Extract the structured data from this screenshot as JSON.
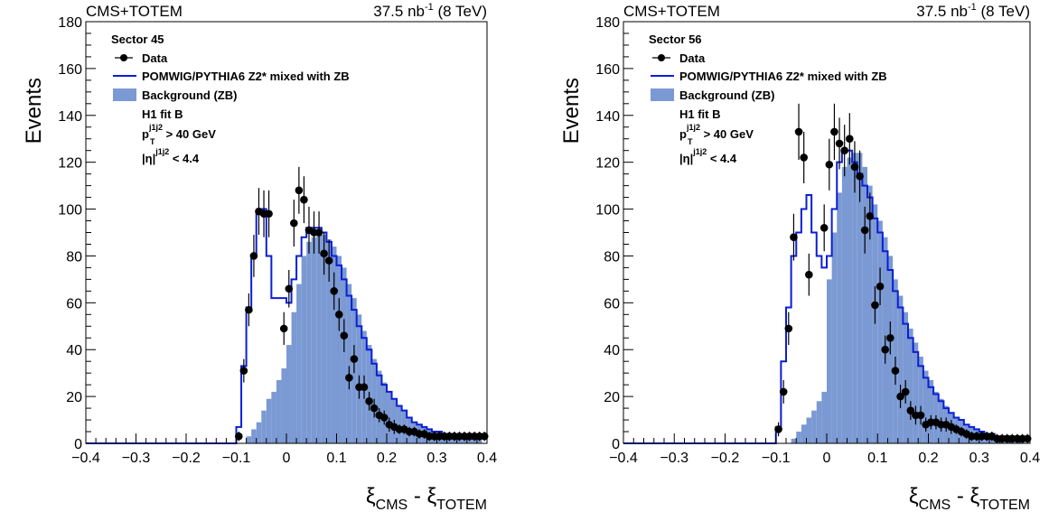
{
  "chart_data": [
    {
      "type": "bar",
      "header_left": "CMS+TOTEM",
      "header_right": {
        "lumi": "37.5 nb",
        "exp": "-1",
        "energy": " (8 TeV)"
      },
      "ylabel": "Events",
      "xlabel": {
        "a": "ξ",
        "a_sub": "CMS",
        "sep": " - ",
        "b": "ξ",
        "b_sub": "TOTEM"
      },
      "xlim": [
        -0.4,
        0.4
      ],
      "ylim": [
        0,
        180
      ],
      "xticks": [
        "−0.4",
        "−0.3",
        "−0.2",
        "−0.1",
        "0",
        "0.1",
        "0.2",
        "0.3",
        "0.4"
      ],
      "yticks": [
        "0",
        "20",
        "40",
        "60",
        "80",
        "100",
        "120",
        "140",
        "160",
        "180"
      ],
      "legend": {
        "sector": "Sector 45",
        "data": "Data",
        "mc": "POMWIG/PYTHIA6 Z2* mixed with ZB",
        "bkg": "Background (ZB)",
        "fit": "H1 fit B",
        "cut_pt": {
          "p": "p",
          "sup": "j1j2",
          "sub": "T",
          "rest": " > 40 GeV"
        },
        "cut_eta": {
          "pre": "|η|",
          "sup": "j1j2",
          "rest": " < 4.4"
        }
      },
      "bin_edges": [
        -0.4,
        -0.1,
        -0.09,
        -0.08,
        -0.07,
        -0.06,
        -0.05,
        -0.04,
        -0.03,
        -0.02,
        -0.01,
        0.0,
        0.01,
        0.02,
        0.03,
        0.04,
        0.05,
        0.06,
        0.07,
        0.08,
        0.09,
        0.1,
        0.11,
        0.12,
        0.13,
        0.14,
        0.15,
        0.16,
        0.17,
        0.18,
        0.19,
        0.2,
        0.21,
        0.22,
        0.23,
        0.24,
        0.25,
        0.26,
        0.27,
        0.28,
        0.29,
        0.3,
        0.31,
        0.32,
        0.33,
        0.34,
        0.35,
        0.36,
        0.37,
        0.38,
        0.39,
        0.4
      ],
      "series": [
        {
          "name": "Background (ZB)",
          "values": [
            0,
            0,
            0,
            3,
            6,
            9,
            14,
            19,
            22,
            27,
            32,
            42,
            56,
            68,
            80,
            86,
            88,
            89,
            89,
            87,
            84,
            80,
            75,
            68,
            62,
            55,
            48,
            42,
            36,
            31,
            26,
            22,
            19,
            16,
            14,
            11,
            9,
            8,
            7,
            6,
            5,
            5,
            4,
            4,
            3,
            3,
            3,
            2,
            2,
            2
          ]
        },
        {
          "name": "POMWIG/PYTHIA6 Z2* mixed with ZB",
          "values": [
            0,
            7,
            33,
            58,
            80,
            99,
            100,
            80,
            62,
            62,
            62,
            60,
            70,
            80,
            88,
            92,
            92,
            92,
            90,
            86,
            80,
            76,
            70,
            63,
            57,
            50,
            45,
            40,
            34,
            29,
            25,
            22,
            19,
            16,
            14,
            11,
            9,
            8,
            7,
            6,
            5,
            5,
            4,
            4,
            3,
            3,
            3,
            2,
            2,
            2
          ]
        },
        {
          "name": "Data",
          "x": [
            -0.095,
            -0.085,
            -0.075,
            -0.065,
            -0.055,
            -0.045,
            -0.035,
            -0.005,
            0.005,
            0.015,
            0.025,
            0.035,
            0.045,
            0.055,
            0.065,
            0.075,
            0.085,
            0.095,
            0.105,
            0.115,
            0.125,
            0.135,
            0.145,
            0.155,
            0.165,
            0.175,
            0.185,
            0.195,
            0.205,
            0.215,
            0.225,
            0.235,
            0.245,
            0.255,
            0.265,
            0.275,
            0.285,
            0.295,
            0.305,
            0.315,
            0.325,
            0.335,
            0.345,
            0.355,
            0.365,
            0.375,
            0.385,
            0.395
          ],
          "values": [
            3,
            31,
            57,
            80,
            99,
            98,
            98,
            49,
            66,
            94,
            108,
            104,
            91,
            90,
            90,
            81,
            78,
            65,
            55,
            46,
            28,
            36,
            24,
            24,
            18,
            15,
            12,
            11,
            8,
            7,
            6,
            6,
            5,
            5,
            4,
            4,
            3,
            3,
            3,
            3,
            3,
            3,
            3,
            3,
            3,
            3,
            3,
            3
          ],
          "errors": [
            2,
            5,
            7,
            9,
            10,
            10,
            10,
            7,
            8,
            10,
            10,
            10,
            10,
            9,
            9,
            9,
            9,
            8,
            7,
            7,
            5,
            6,
            5,
            5,
            4,
            4,
            3,
            3,
            3,
            3,
            2,
            2,
            2,
            2,
            2,
            2,
            2,
            2,
            2,
            2,
            2,
            2,
            2,
            2,
            2,
            2,
            2,
            2
          ]
        }
      ]
    },
    {
      "type": "bar",
      "header_left": "CMS+TOTEM",
      "header_right": {
        "lumi": "37.5 nb",
        "exp": "-1",
        "energy": " (8 TeV)"
      },
      "ylabel": "Events",
      "xlabel": {
        "a": "ξ",
        "a_sub": "CMS",
        "sep": " - ",
        "b": "ξ",
        "b_sub": "TOTEM"
      },
      "xlim": [
        -0.4,
        0.4
      ],
      "ylim": [
        0,
        180
      ],
      "xticks": [
        "−0.4",
        "−0.3",
        "−0.2",
        "−0.1",
        "0",
        "0.1",
        "0.2",
        "0.3",
        "0.4"
      ],
      "yticks": [
        "0",
        "20",
        "40",
        "60",
        "80",
        "100",
        "120",
        "140",
        "160",
        "180"
      ],
      "legend": {
        "sector": "Sector 56",
        "data": "Data",
        "mc": "POMWIG/PYTHIA6 Z2* mixed with ZB",
        "bkg": "Background (ZB)",
        "fit": "H1 fit B",
        "cut_pt": {
          "p": "p",
          "sup": "j1j2",
          "sub": "T",
          "rest": " > 40 GeV"
        },
        "cut_eta": {
          "pre": "|η|",
          "sup": "j1j2",
          "rest": " < 4.4"
        }
      },
      "bin_edges": [
        -0.4,
        -0.1,
        -0.09,
        -0.08,
        -0.07,
        -0.06,
        -0.05,
        -0.04,
        -0.03,
        -0.02,
        -0.01,
        0.0,
        0.01,
        0.02,
        0.03,
        0.04,
        0.05,
        0.06,
        0.07,
        0.08,
        0.09,
        0.1,
        0.11,
        0.12,
        0.13,
        0.14,
        0.15,
        0.16,
        0.17,
        0.18,
        0.19,
        0.2,
        0.21,
        0.22,
        0.23,
        0.24,
        0.25,
        0.26,
        0.27,
        0.28,
        0.29,
        0.3,
        0.31,
        0.32,
        0.33,
        0.34,
        0.35,
        0.36,
        0.37,
        0.38,
        0.39,
        0.4
      ],
      "series": [
        {
          "name": "Background (ZB)",
          "values": [
            0,
            0,
            0,
            0,
            2,
            5,
            8,
            11,
            14,
            18,
            22,
            70,
            90,
            107,
            118,
            122,
            124,
            124,
            118,
            110,
            102,
            95,
            88,
            80,
            70,
            63,
            56,
            49,
            43,
            37,
            31,
            27,
            22,
            19,
            16,
            13,
            11,
            10,
            8,
            7,
            6,
            5,
            4,
            4,
            3,
            3,
            3,
            2,
            2,
            2
          ]
        },
        {
          "name": "POMWIG/PYTHIA6 Z2* mixed with ZB",
          "values": [
            0,
            7,
            35,
            58,
            80,
            90,
            100,
            106,
            90,
            80,
            75,
            80,
            100,
            120,
            125,
            125,
            120,
            115,
            110,
            105,
            96,
            90,
            82,
            74,
            65,
            58,
            51,
            45,
            39,
            33,
            28,
            24,
            21,
            18,
            15,
            13,
            11,
            10,
            8,
            7,
            6,
            5,
            4,
            4,
            3,
            3,
            3,
            2,
            2,
            2
          ]
        },
        {
          "name": "Data",
          "x": [
            -0.095,
            -0.085,
            -0.075,
            -0.065,
            -0.055,
            -0.045,
            -0.035,
            -0.005,
            0.005,
            0.015,
            0.025,
            0.035,
            0.045,
            0.055,
            0.065,
            0.075,
            0.085,
            0.095,
            0.105,
            0.115,
            0.125,
            0.135,
            0.145,
            0.155,
            0.165,
            0.175,
            0.185,
            0.195,
            0.205,
            0.215,
            0.225,
            0.235,
            0.245,
            0.255,
            0.265,
            0.275,
            0.285,
            0.295,
            0.305,
            0.315,
            0.325,
            0.335,
            0.345,
            0.355,
            0.365,
            0.375,
            0.385,
            0.395
          ],
          "values": [
            6,
            22,
            49,
            88,
            133,
            122,
            72,
            92,
            119,
            133,
            128,
            125,
            130,
            118,
            114,
            91,
            97,
            59,
            67,
            40,
            45,
            31,
            20,
            22,
            14,
            12,
            12,
            8,
            9,
            9,
            8,
            8,
            7,
            6,
            5,
            4,
            3,
            3,
            3,
            3,
            3,
            2,
            2,
            2,
            2,
            2,
            2,
            2
          ],
          "errors": [
            3,
            5,
            7,
            10,
            12,
            11,
            9,
            10,
            11,
            12,
            11,
            11,
            11,
            11,
            11,
            10,
            10,
            8,
            8,
            6,
            7,
            6,
            5,
            5,
            4,
            4,
            4,
            3,
            3,
            3,
            3,
            3,
            3,
            2,
            2,
            2,
            2,
            2,
            2,
            2,
            2,
            2,
            2,
            2,
            2,
            2,
            2,
            2
          ]
        }
      ]
    }
  ]
}
